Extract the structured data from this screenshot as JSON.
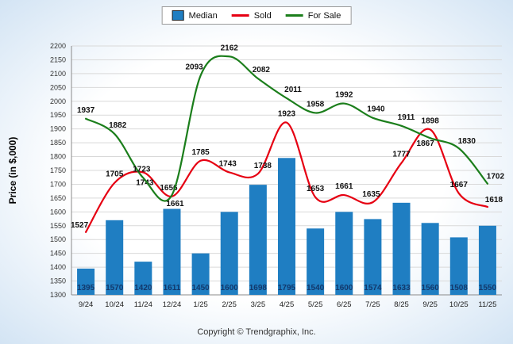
{
  "footer": {
    "copyright": "Copyright © Trendgraphix, Inc."
  },
  "chart_data": {
    "type": "bar+line",
    "title": "",
    "xlabel": "",
    "ylabel": "Price (in $,000)",
    "ylim": [
      1300,
      2200
    ],
    "ytick_step": 50,
    "grid": "horizontal",
    "legend_position": "top-center",
    "categories": [
      "9/24",
      "10/24",
      "11/24",
      "12/24",
      "1/25",
      "2/25",
      "3/25",
      "4/25",
      "5/25",
      "6/25",
      "7/25",
      "8/25",
      "9/25",
      "10/25",
      "11/25"
    ],
    "series": [
      {
        "name": "Median",
        "type": "bar",
        "color": "#1f7ec2",
        "values": [
          1395,
          1570,
          1420,
          1611,
          1450,
          1600,
          1698,
          1795,
          1540,
          1600,
          1574,
          1633,
          1560,
          1508,
          1550
        ]
      },
      {
        "name": "Sold",
        "type": "line",
        "color": "#e60012",
        "values": [
          1527,
          1705,
          1743,
          1656,
          1785,
          1743,
          1738,
          1923,
          1653,
          1661,
          1635,
          1777,
          1898,
          1667,
          1618
        ]
      },
      {
        "name": "For Sale",
        "type": "line",
        "color": "#1b7e1b",
        "values": [
          1937,
          1882,
          1723,
          1661,
          2093,
          2162,
          2082,
          2011,
          1958,
          1992,
          1940,
          1911,
          1867,
          1830,
          1702
        ]
      }
    ]
  }
}
